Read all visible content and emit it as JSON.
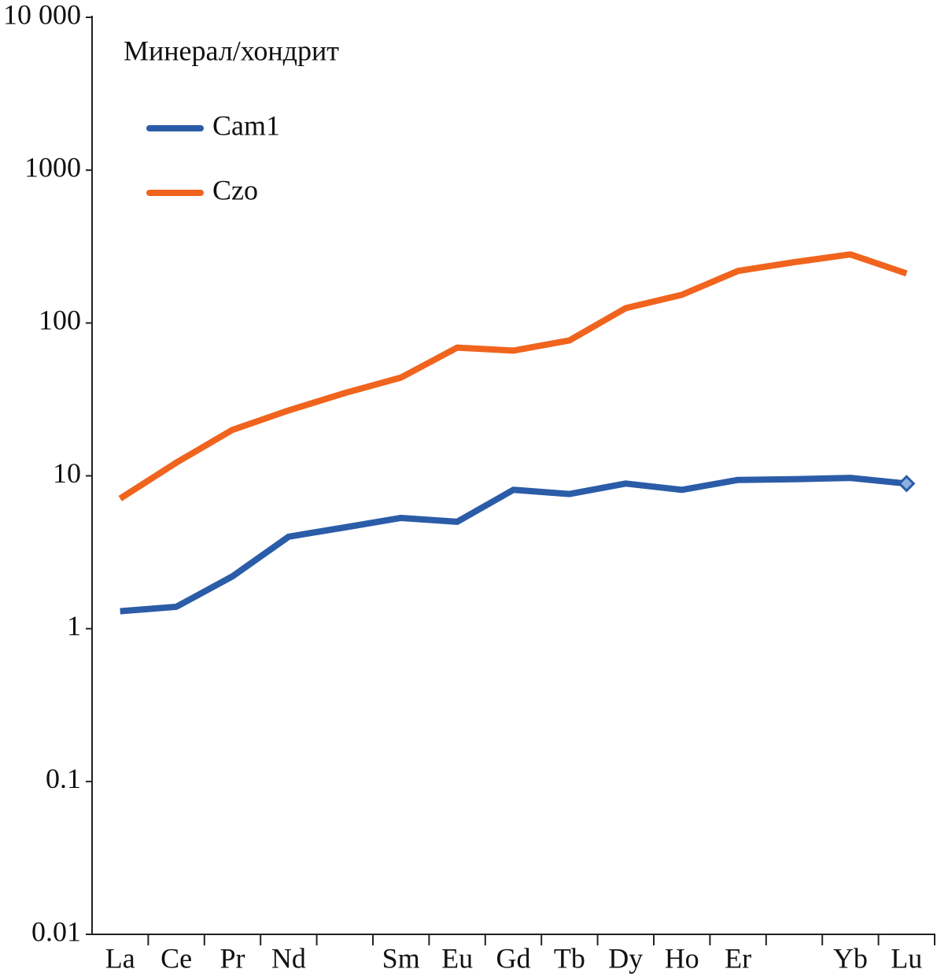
{
  "chart_data": {
    "type": "line",
    "ylabel": "Минерал/хондрит",
    "categories": [
      "La",
      "Ce",
      "Pr",
      "Nd",
      null,
      "Sm",
      "Eu",
      "Gd",
      "Tb",
      "Dy",
      "Ho",
      "Er",
      null,
      "Yb",
      "Lu"
    ],
    "series": [
      {
        "name": "Cam1",
        "color": "#2b5ca8",
        "end_marker": "diamond",
        "values": [
          1.3,
          1.39,
          2.2,
          4.0,
          4.6,
          5.3,
          5.0,
          8.1,
          7.6,
          8.9,
          8.1,
          9.4,
          9.5,
          9.7,
          8.9
        ]
      },
      {
        "name": "Czo",
        "color": "#f0641e",
        "values": [
          7.1,
          12.2,
          20,
          26.8,
          34.8,
          44,
          69,
          66,
          77,
          125,
          153,
          219,
          250,
          281,
          211
        ]
      }
    ],
    "log_y": true,
    "ylim": [
      0.01,
      10000
    ],
    "yticks": [
      0.01,
      0.1,
      1,
      10,
      100,
      1000,
      {
        "value": 10000,
        "label": "10 000"
      }
    ],
    "legend": "upper left"
  }
}
